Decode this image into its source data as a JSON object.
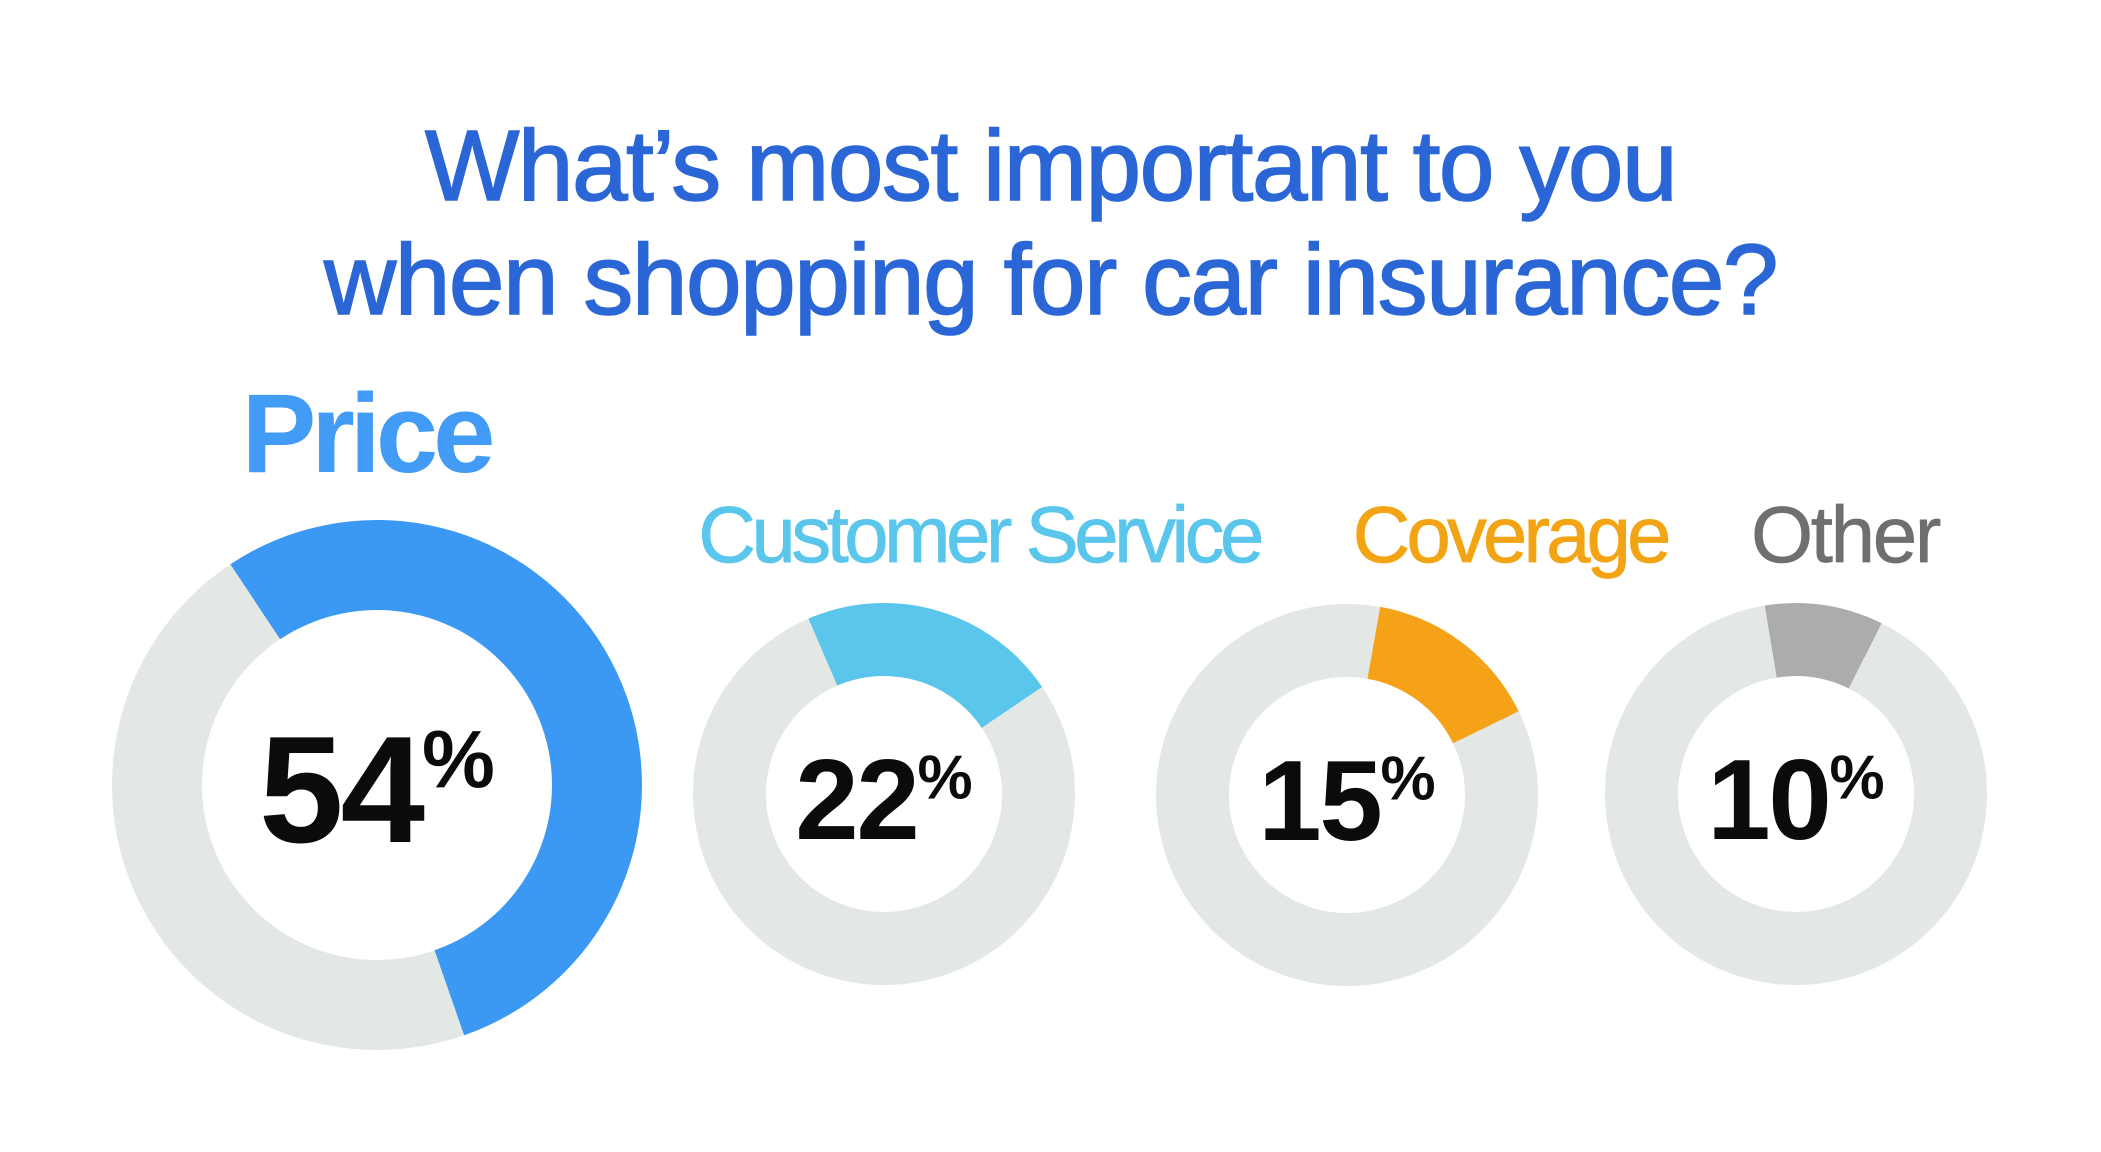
{
  "title": {
    "line1": "What’s most important to you",
    "line2": "when shopping for car insurance?"
  },
  "colors": {
    "title": "#2B66D6",
    "track": "#E3E8E5",
    "value_text": "#0B0B0B",
    "background": "#FFFFFF"
  },
  "chart_data": {
    "type": "pie",
    "subtype": "donut_multiples",
    "title": "What’s most important to you when shopping for car insurance?",
    "unit": "%",
    "categories": [
      "Price",
      "Customer Service",
      "Coverage",
      "Other"
    ],
    "values": [
      54,
      22,
      15,
      10
    ],
    "track_color": "#E3E8E5",
    "legend_position": "label-above-each-donut",
    "donuts": [
      {
        "label": "Price",
        "value": 54,
        "value_text": "54",
        "unit": "%",
        "color": "#3C99F3",
        "label_color": "#429BF4",
        "start_deg": -33.6
      },
      {
        "label": "Customer Service",
        "value": 22,
        "value_text": "22",
        "unit": "%",
        "color": "#5AC6EC",
        "label_color": "#5AC6EC",
        "start_deg": -23.3
      },
      {
        "label": "Coverage",
        "value": 15,
        "value_text": "15",
        "unit": "%",
        "color": "#F5A219",
        "label_color": "#F2A414",
        "start_deg": 10
      },
      {
        "label": "Other",
        "value": 10,
        "value_text": "10",
        "unit": "%",
        "color": "#ACACAC",
        "label_color": "#6F6F6F",
        "start_deg": -9.4
      }
    ]
  }
}
